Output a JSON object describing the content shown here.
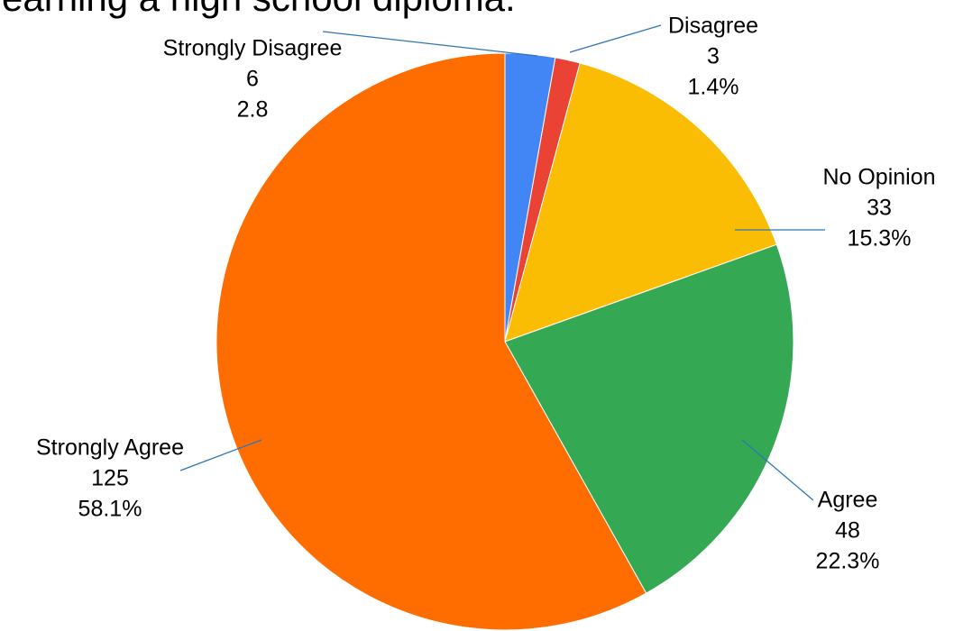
{
  "title_fragment": "earning a high school diploma.",
  "chart_data": {
    "type": "pie",
    "slices": [
      {
        "label": "Strongly Disagree",
        "value": 6,
        "pct_text": "2.8",
        "color": "#4285f4"
      },
      {
        "label": "Disagree",
        "value": 3,
        "pct_text": "1.4%",
        "color": "#ea4335"
      },
      {
        "label": "No Opinion",
        "value": 33,
        "pct_text": "15.3%",
        "color": "#fbbc04"
      },
      {
        "label": "Agree",
        "value": 48,
        "pct_text": "22.3%",
        "color": "#34a853"
      },
      {
        "label": "Strongly Agree",
        "value": 125,
        "pct_text": "58.1%",
        "color": "#ff6d01"
      }
    ]
  }
}
